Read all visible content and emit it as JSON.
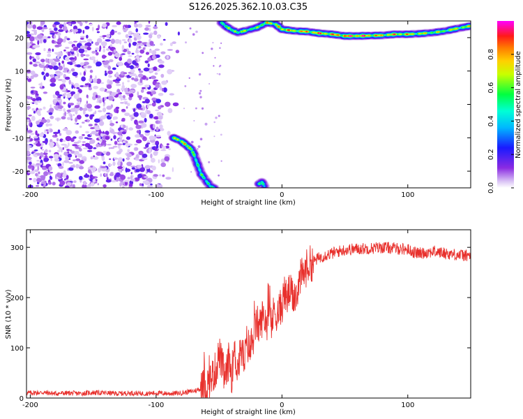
{
  "title": "S126.2025.362.10.03.C35",
  "chart_data": [
    {
      "type": "heatmap",
      "xlabel": "Height of straight line (km)",
      "ylabel": "Frequency (Hz)",
      "xlim": [
        -203,
        150
      ],
      "ylim": [
        -25,
        25
      ],
      "xticks": [
        -200,
        -100,
        0,
        100
      ],
      "yticks": [
        -20,
        -10,
        0,
        10,
        20
      ],
      "colorbar": {
        "label": "Normalized spectral amplitude",
        "range": [
          0.0,
          1.0
        ],
        "ticks": [
          0.0,
          0.2,
          0.4,
          0.6,
          0.8
        ],
        "tick_labels": [
          "0.0",
          "0.2",
          "0.4",
          "0.6",
          "0.8"
        ]
      },
      "noise_region_km": [
        -203,
        -80
      ],
      "ridge_upper": {
        "x": [
          -48,
          -45,
          -40,
          -35,
          -30,
          -20,
          -12,
          -5,
          0,
          10,
          20,
          30,
          40,
          50,
          60,
          70,
          80,
          90,
          100,
          110,
          120,
          130,
          140,
          150
        ],
        "y": [
          24.5,
          23.5,
          22.3,
          21.5,
          22,
          23,
          24.5,
          24,
          22.5,
          22,
          21.8,
          21.3,
          21,
          20.5,
          20.5,
          20.6,
          20.7,
          21,
          21,
          21.2,
          21.5,
          22,
          22.8,
          23.5
        ],
        "amp": [
          0.5,
          0.6,
          0.7,
          0.6,
          0.7,
          0.6,
          0.8,
          0.7,
          0.85,
          0.8,
          0.85,
          0.9,
          0.85,
          0.95,
          0.95,
          0.9,
          0.8,
          0.85,
          0.8,
          0.75,
          0.7,
          0.7,
          0.75,
          0.7
        ]
      },
      "ridge_lower": {
        "x": [
          -86,
          -80,
          -75,
          -72,
          -70,
          -67,
          -64,
          -60,
          -57,
          -54
        ],
        "y": [
          -10,
          -11,
          -12.5,
          -13.5,
          -15,
          -18,
          -21,
          -23,
          -24.5,
          -25
        ],
        "amp": [
          0.7,
          0.75,
          0.8,
          0.7,
          0.6,
          0.5,
          0.6,
          0.5,
          0.55,
          0.5
        ]
      },
      "ridge_bottom": {
        "x": [
          -18,
          -16,
          -14
        ],
        "y": [
          -23.8,
          -23.2,
          -24.5
        ],
        "amp": [
          0.6,
          0.55,
          0.5
        ]
      }
    },
    {
      "type": "line",
      "xlabel": "Height of straight line (km)",
      "ylabel": "SNR (10 * v/v)",
      "xlim": [
        -203,
        150
      ],
      "ylim": [
        0,
        335
      ],
      "xticks": [
        -200,
        -100,
        0,
        100
      ],
      "yticks": [
        0,
        100,
        200,
        300
      ],
      "color": "#e8302c",
      "series": [
        {
          "name": "SNR",
          "x": [
            -203,
            -190,
            -180,
            -170,
            -160,
            -150,
            -140,
            -130,
            -120,
            -110,
            -100,
            -90,
            -80,
            -75,
            -70,
            -65,
            -60,
            -55,
            -52,
            -50,
            -48,
            -45,
            -42,
            -40,
            -38,
            -35,
            -32,
            -30,
            -28,
            -25,
            -22,
            -20,
            -18,
            -15,
            -12,
            -10,
            -8,
            -6,
            -5,
            -3,
            0,
            2,
            4,
            6,
            8,
            10,
            12,
            15,
            18,
            20,
            25,
            30,
            35,
            40,
            45,
            50,
            60,
            70,
            80,
            90,
            100,
            105,
            110,
            115,
            120,
            130,
            140,
            150
          ],
          "y": [
            10,
            11,
            9,
            10,
            9,
            11,
            10,
            9,
            10,
            9,
            10,
            9,
            10,
            12,
            14,
            18,
            25,
            45,
            60,
            90,
            70,
            35,
            80,
            45,
            90,
            60,
            100,
            70,
            110,
            95,
            130,
            150,
            140,
            165,
            150,
            175,
            145,
            180,
            170,
            170,
            185,
            210,
            195,
            215,
            200,
            205,
            215,
            240,
            250,
            262,
            272,
            280,
            285,
            288,
            292,
            295,
            297,
            298,
            300,
            298,
            296,
            290,
            288,
            290,
            292,
            288,
            285,
            283
          ]
        }
      ]
    }
  ]
}
